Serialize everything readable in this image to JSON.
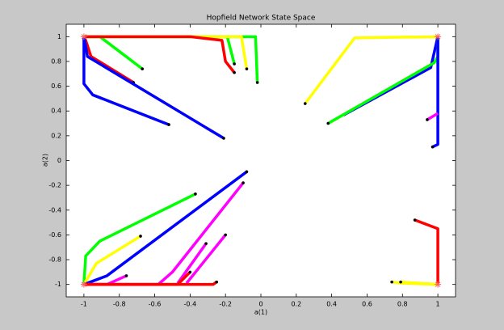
{
  "chart_data": {
    "type": "line",
    "title": "Hopfield Network State Space",
    "x_label": "a(1)",
    "y_label": "a(2)",
    "xlim": [
      -1.1,
      1.1
    ],
    "ylim": [
      -1.1,
      1.1
    ],
    "xticks": [
      -1,
      -0.8,
      -0.6,
      -0.4,
      -0.2,
      0,
      0.2,
      0.4,
      0.6,
      0.8,
      1
    ],
    "yticks": [
      -1,
      -0.8,
      -0.6,
      -0.4,
      -0.2,
      0,
      0.2,
      0.4,
      0.6,
      0.8,
      1
    ],
    "start_color": "#000000",
    "series": [
      {
        "color": "#00ff00",
        "x": [
          -0.02,
          -0.03,
          -1
        ],
        "values": [
          0.63,
          1,
          1
        ]
      },
      {
        "color": "#00ff00",
        "x": [
          -0.15,
          -0.19,
          -1
        ],
        "values": [
          0.78,
          1,
          1
        ]
      },
      {
        "color": "#ffff00",
        "x": [
          -0.08,
          -0.11,
          -1
        ],
        "values": [
          0.74,
          1,
          1
        ]
      },
      {
        "color": "#00ff00",
        "x": [
          -0.67,
          -0.91,
          -1
        ],
        "values": [
          0.74,
          1,
          1
        ]
      },
      {
        "color": "#ff0000",
        "x": [
          -0.15,
          -0.2,
          -0.22,
          -0.4,
          -1
        ],
        "values": [
          0.71,
          0.8,
          0.97,
          1,
          1
        ]
      },
      {
        "color": "#ff0000",
        "x": [
          -0.72,
          -0.96,
          -0.99,
          -1
        ],
        "values": [
          0.63,
          0.84,
          0.97,
          1
        ]
      },
      {
        "color": "#0000ff",
        "x": [
          -0.21,
          -0.98,
          -1
        ],
        "values": [
          0.18,
          0.84,
          1
        ]
      },
      {
        "color": "#0000ff",
        "x": [
          -0.52,
          -0.95,
          -1,
          -1
        ],
        "values": [
          0.29,
          0.53,
          0.62,
          1
        ]
      },
      {
        "color": "#ffff00",
        "x": [
          0.25,
          0.53,
          1
        ],
        "values": [
          0.46,
          0.99,
          1
        ]
      },
      {
        "color": "#0000ff",
        "x": [
          0.47,
          0.96,
          1
        ],
        "values": [
          0.37,
          0.75,
          1
        ]
      },
      {
        "color": "#00ff00",
        "x": [
          0.38,
          0.98,
          1,
          1
        ],
        "values": [
          0.3,
          0.79,
          0.84,
          1
        ]
      },
      {
        "color": "#0000ff",
        "x": [
          0.97,
          1,
          1
        ],
        "values": [
          0.11,
          0.13,
          1
        ]
      },
      {
        "color": "#ff00ff",
        "x": [
          0.94,
          1
        ],
        "values": [
          0.33,
          0.38
        ]
      },
      {
        "color": "#ff0000",
        "x": [
          0.87,
          1,
          1
        ],
        "values": [
          -0.48,
          -0.55,
          -1
        ]
      },
      {
        "color": "#ffff00",
        "x": [
          0.74,
          0.8,
          1
        ],
        "values": [
          -0.98,
          -0.99,
          -1
        ]
      },
      {
        "color": "#ffff00",
        "x": [
          0.79,
          1
        ],
        "values": [
          -0.98,
          -1
        ]
      },
      {
        "color": "#00ff00",
        "x": [
          -0.37,
          -0.91,
          -0.99,
          -1
        ],
        "values": [
          -0.27,
          -0.65,
          -0.77,
          -1
        ]
      },
      {
        "color": "#ffff00",
        "x": [
          -0.68,
          -0.93,
          -1
        ],
        "values": [
          -0.61,
          -0.83,
          -1
        ]
      },
      {
        "color": "#0000ff",
        "x": [
          -0.08,
          -0.87,
          -1
        ],
        "values": [
          -0.09,
          -0.93,
          -1
        ]
      },
      {
        "color": "#ff00ff",
        "x": [
          -0.1,
          -0.5,
          -0.58,
          -1
        ],
        "values": [
          -0.18,
          -0.9,
          -1,
          -1
        ]
      },
      {
        "color": "#ff00ff",
        "x": [
          -0.2,
          -0.42
        ],
        "values": [
          -0.6,
          -0.99
        ]
      },
      {
        "color": "#ff00ff",
        "x": [
          -0.31,
          -0.47
        ],
        "values": [
          -0.67,
          -0.99
        ]
      },
      {
        "color": "#ff00ff",
        "x": [
          -0.76,
          -0.87,
          -1
        ],
        "values": [
          -0.93,
          -1,
          -1
        ]
      },
      {
        "color": "#ff0000",
        "x": [
          -0.25,
          -0.27,
          -1
        ],
        "values": [
          -0.98,
          -1,
          -1
        ]
      },
      {
        "color": "#ff0000",
        "x": [
          -0.4,
          -0.47,
          -1
        ],
        "values": [
          -0.9,
          -1,
          -1
        ]
      }
    ],
    "equilibria": {
      "color": "#ff6060",
      "x": [
        -1,
        1,
        -1,
        1
      ],
      "values": [
        1,
        1,
        -1,
        -1
      ]
    }
  }
}
